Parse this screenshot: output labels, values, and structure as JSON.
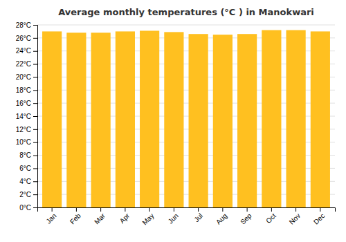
{
  "chart_data": {
    "type": "bar",
    "title": "Average monthly temperatures (°C ) in Manokwari",
    "categories": [
      "Jan",
      "Feb",
      "Mar",
      "Apr",
      "May",
      "Jun",
      "Jul",
      "Aug",
      "Sep",
      "Oct",
      "Nov",
      "Dec"
    ],
    "values": [
      27.0,
      26.8,
      26.8,
      27.0,
      27.1,
      26.9,
      26.6,
      26.5,
      26.6,
      27.2,
      27.2,
      27.0
    ],
    "color": "#FFC020",
    "ylim": [
      0,
      28
    ],
    "yticks": [
      {
        "value": 0,
        "label": "0°C"
      },
      {
        "value": 2,
        "label": "2°C"
      },
      {
        "value": 4,
        "label": "4°C"
      },
      {
        "value": 6,
        "label": "6°C"
      },
      {
        "value": 8,
        "label": "8°C"
      },
      {
        "value": 10,
        "label": "10°C"
      },
      {
        "value": 12,
        "label": "12°C"
      },
      {
        "value": 14,
        "label": "14°C"
      },
      {
        "value": 16,
        "label": "16°C"
      },
      {
        "value": 18,
        "label": "18°C"
      },
      {
        "value": 20,
        "label": "20°C"
      },
      {
        "value": 22,
        "label": "22°C"
      },
      {
        "value": 24,
        "label": "24°C"
      },
      {
        "value": 26,
        "label": "26°C"
      },
      {
        "value": 28,
        "label": "28°C"
      }
    ],
    "grid": true
  }
}
